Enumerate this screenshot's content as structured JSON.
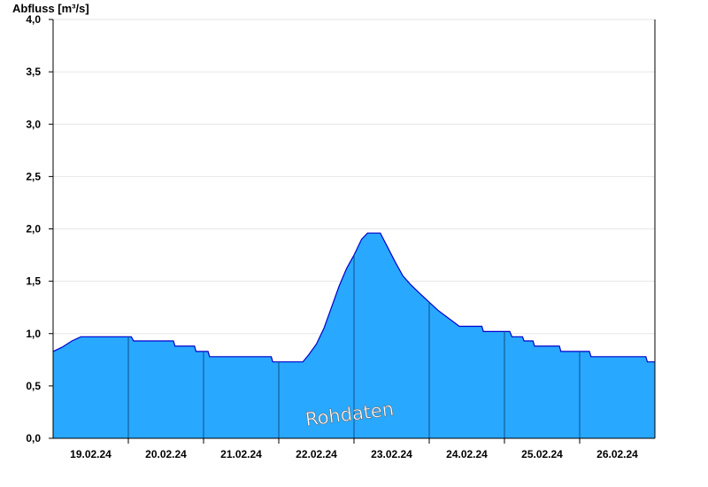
{
  "chart_data": {
    "type": "area",
    "ylabel": "Abfluss [m³/s]",
    "ylim": [
      0,
      4.0
    ],
    "y_ticks": [
      0,
      0.5,
      1.0,
      1.5,
      2.0,
      2.5,
      3.0,
      3.5,
      4.0
    ],
    "y_tick_labels": [
      "0,0",
      "0,5",
      "1,0",
      "1,5",
      "2,0",
      "2,5",
      "3,0",
      "3,5",
      "4,0"
    ],
    "x_tick_labels": [
      "19.02.24",
      "20.02.24",
      "21.02.24",
      "22.02.24",
      "23.02.24",
      "24.02.24",
      "25.02.24",
      "26.02.24"
    ],
    "xlim_days": [
      0,
      8
    ],
    "grid": true,
    "watermark": "Rohdaten",
    "colors": {
      "fill": "#29a8ff",
      "line": "#0000cc"
    },
    "series": [
      {
        "values": [
          [
            0.0,
            0.83
          ],
          [
            0.12,
            0.87
          ],
          [
            0.25,
            0.93
          ],
          [
            0.37,
            0.97
          ],
          [
            1.04,
            0.97
          ],
          [
            1.07,
            0.93
          ],
          [
            1.6,
            0.93
          ],
          [
            1.62,
            0.88
          ],
          [
            1.88,
            0.88
          ],
          [
            1.9,
            0.83
          ],
          [
            2.06,
            0.83
          ],
          [
            2.08,
            0.78
          ],
          [
            2.9,
            0.78
          ],
          [
            2.92,
            0.73
          ],
          [
            3.32,
            0.73
          ],
          [
            3.4,
            0.8
          ],
          [
            3.5,
            0.9
          ],
          [
            3.6,
            1.05
          ],
          [
            3.7,
            1.25
          ],
          [
            3.8,
            1.45
          ],
          [
            3.9,
            1.62
          ],
          [
            4.0,
            1.75
          ],
          [
            4.1,
            1.9
          ],
          [
            4.18,
            1.96
          ],
          [
            4.35,
            1.96
          ],
          [
            4.45,
            1.82
          ],
          [
            4.55,
            1.68
          ],
          [
            4.65,
            1.55
          ],
          [
            4.75,
            1.47
          ],
          [
            4.88,
            1.38
          ],
          [
            5.0,
            1.3
          ],
          [
            5.12,
            1.22
          ],
          [
            5.25,
            1.15
          ],
          [
            5.4,
            1.07
          ],
          [
            5.7,
            1.07
          ],
          [
            5.72,
            1.02
          ],
          [
            6.07,
            1.02
          ],
          [
            6.1,
            0.97
          ],
          [
            6.24,
            0.97
          ],
          [
            6.26,
            0.93
          ],
          [
            6.38,
            0.93
          ],
          [
            6.4,
            0.88
          ],
          [
            6.73,
            0.88
          ],
          [
            6.75,
            0.83
          ],
          [
            7.13,
            0.83
          ],
          [
            7.15,
            0.78
          ],
          [
            7.88,
            0.78
          ],
          [
            7.9,
            0.73
          ],
          [
            8.0,
            0.73
          ]
        ]
      }
    ]
  }
}
